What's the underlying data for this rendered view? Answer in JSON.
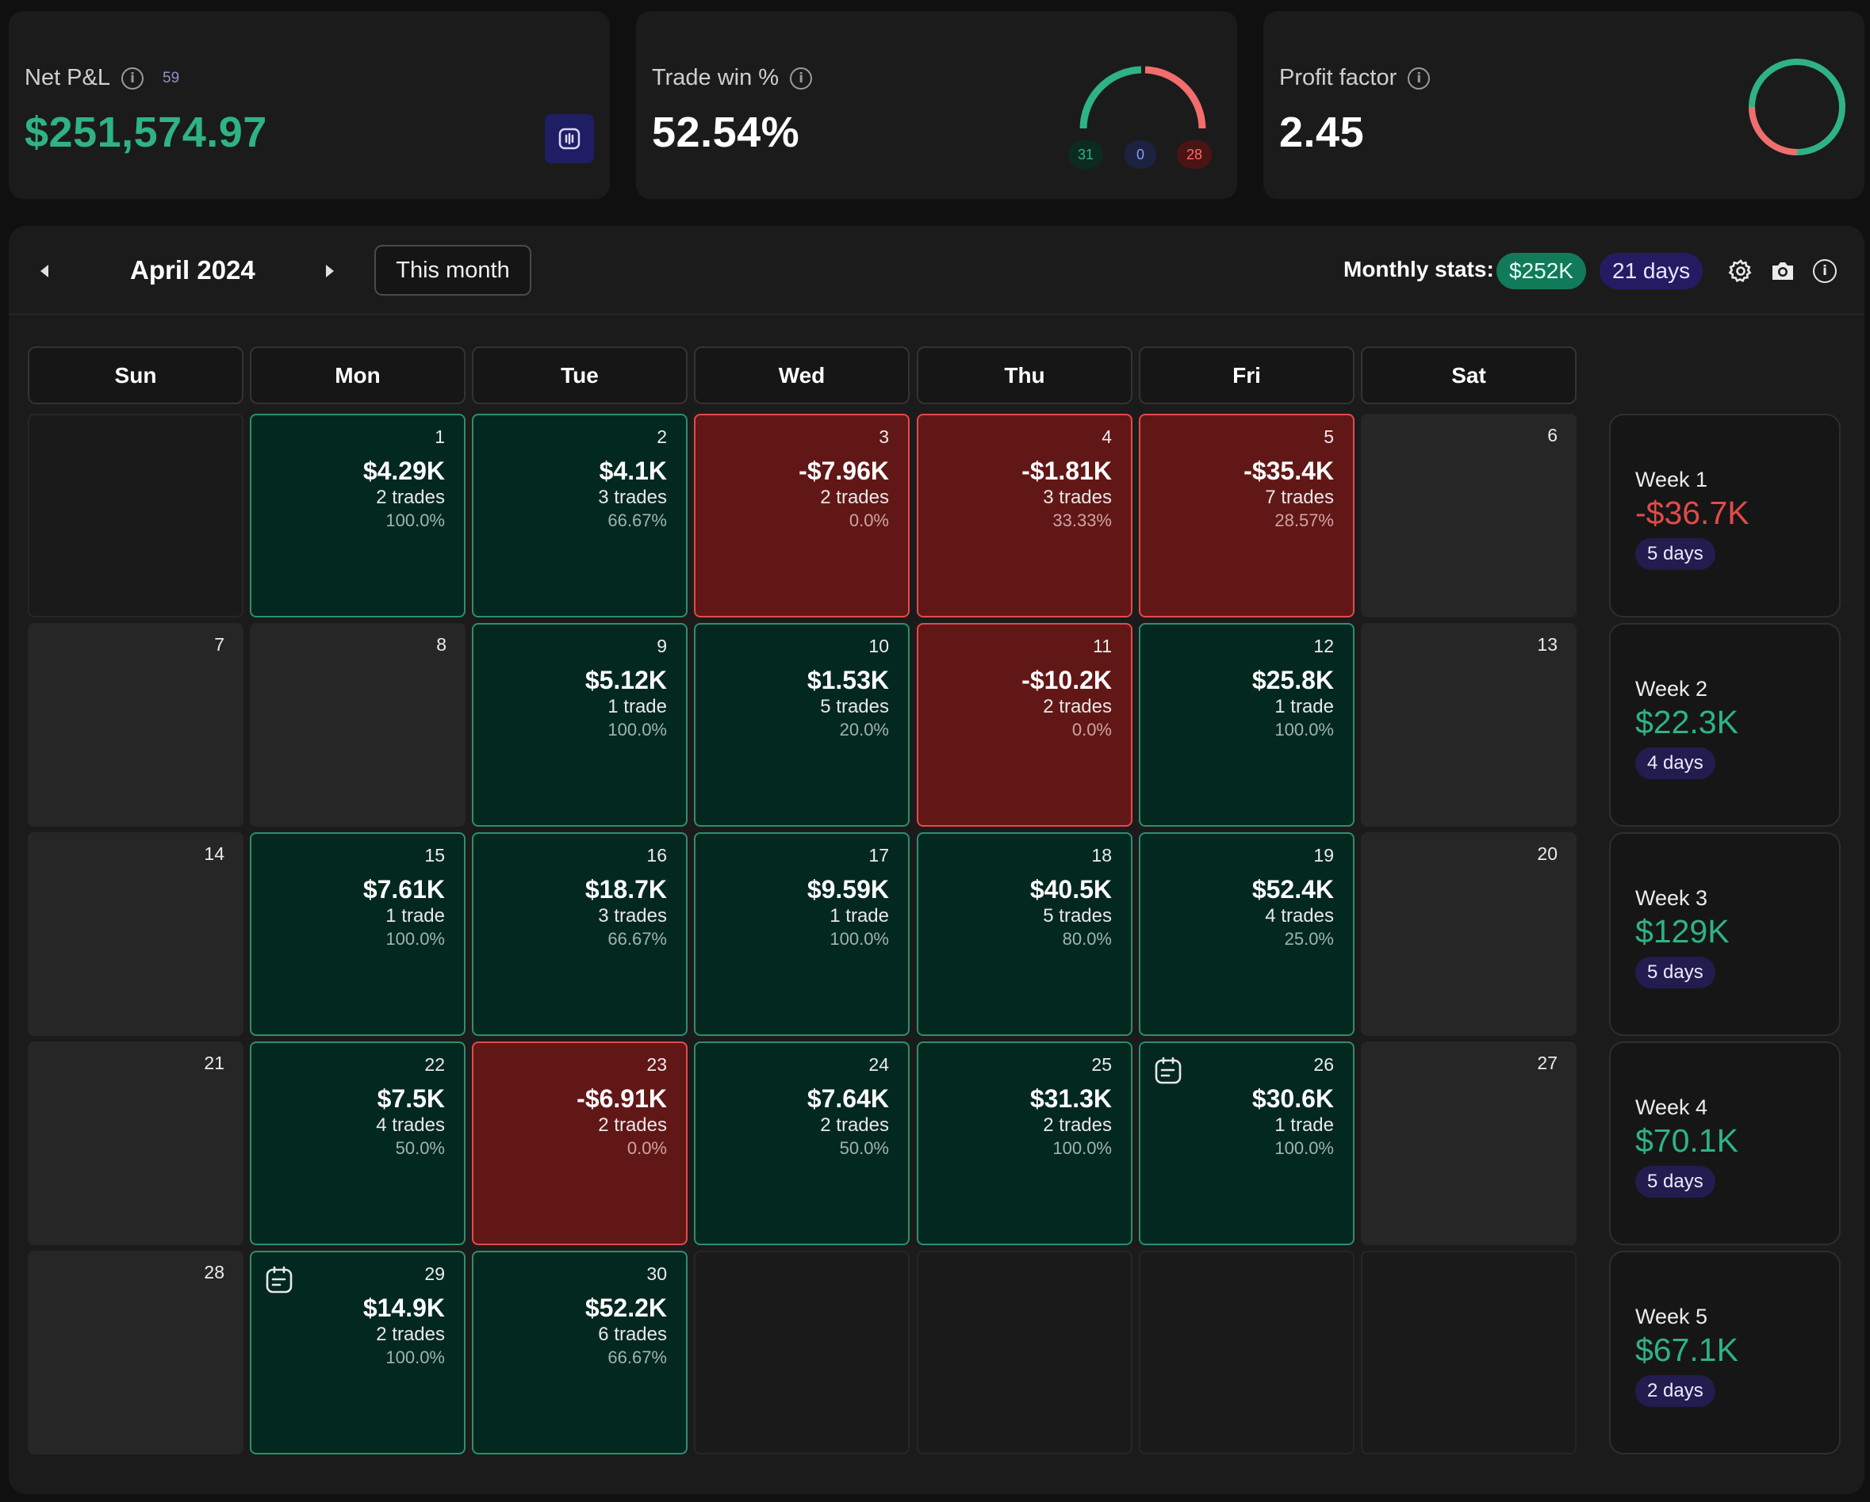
{
  "cards": {
    "net_pnl": {
      "label": "Net P&L",
      "count": "59",
      "value": "$251,574.97"
    },
    "trade_win": {
      "label": "Trade win %",
      "value": "52.54%",
      "wins": "31",
      "breakeven": "0",
      "losses": "28"
    },
    "profit_factor": {
      "label": "Profit factor",
      "value": "2.45"
    }
  },
  "calendar": {
    "month_title": "April 2024",
    "this_month_label": "This month",
    "monthly_stats_label": "Monthly stats:",
    "monthly_profit": "$252K",
    "monthly_days": "21 days",
    "weekdays": [
      "Sun",
      "Mon",
      "Tue",
      "Wed",
      "Thu",
      "Fri",
      "Sat"
    ],
    "weeks": [
      [
        {
          "kind": "blank"
        },
        {
          "kind": "profit",
          "day": "1",
          "pnl": "$4.29K",
          "trades": "2 trades",
          "rate": "100.0%"
        },
        {
          "kind": "profit",
          "day": "2",
          "pnl": "$4.1K",
          "trades": "3 trades",
          "rate": "66.67%"
        },
        {
          "kind": "loss",
          "day": "3",
          "pnl": "-$7.96K",
          "trades": "2 trades",
          "rate": "0.0%"
        },
        {
          "kind": "loss",
          "day": "4",
          "pnl": "-$1.81K",
          "trades": "3 trades",
          "rate": "33.33%"
        },
        {
          "kind": "loss",
          "day": "5",
          "pnl": "-$35.4K",
          "trades": "7 trades",
          "rate": "28.57%"
        },
        {
          "kind": "empty",
          "day": "6"
        }
      ],
      [
        {
          "kind": "empty",
          "day": "7"
        },
        {
          "kind": "empty",
          "day": "8"
        },
        {
          "kind": "profit",
          "day": "9",
          "pnl": "$5.12K",
          "trades": "1 trade",
          "rate": "100.0%"
        },
        {
          "kind": "profit",
          "day": "10",
          "pnl": "$1.53K",
          "trades": "5 trades",
          "rate": "20.0%"
        },
        {
          "kind": "loss",
          "day": "11",
          "pnl": "-$10.2K",
          "trades": "2 trades",
          "rate": "0.0%"
        },
        {
          "kind": "profit",
          "day": "12",
          "pnl": "$25.8K",
          "trades": "1 trade",
          "rate": "100.0%"
        },
        {
          "kind": "empty",
          "day": "13"
        }
      ],
      [
        {
          "kind": "empty",
          "day": "14"
        },
        {
          "kind": "profit",
          "day": "15",
          "pnl": "$7.61K",
          "trades": "1 trade",
          "rate": "100.0%"
        },
        {
          "kind": "profit",
          "day": "16",
          "pnl": "$18.7K",
          "trades": "3 trades",
          "rate": "66.67%"
        },
        {
          "kind": "profit",
          "day": "17",
          "pnl": "$9.59K",
          "trades": "1 trade",
          "rate": "100.0%"
        },
        {
          "kind": "profit",
          "day": "18",
          "pnl": "$40.5K",
          "trades": "5 trades",
          "rate": "80.0%"
        },
        {
          "kind": "profit",
          "day": "19",
          "pnl": "$52.4K",
          "trades": "4 trades",
          "rate": "25.0%"
        },
        {
          "kind": "empty",
          "day": "20"
        }
      ],
      [
        {
          "kind": "empty",
          "day": "21"
        },
        {
          "kind": "profit",
          "day": "22",
          "pnl": "$7.5K",
          "trades": "4 trades",
          "rate": "50.0%"
        },
        {
          "kind": "loss",
          "day": "23",
          "pnl": "-$6.91K",
          "trades": "2 trades",
          "rate": "0.0%"
        },
        {
          "kind": "profit",
          "day": "24",
          "pnl": "$7.64K",
          "trades": "2 trades",
          "rate": "50.0%"
        },
        {
          "kind": "profit",
          "day": "25",
          "pnl": "$31.3K",
          "trades": "2 trades",
          "rate": "100.0%"
        },
        {
          "kind": "profit",
          "day": "26",
          "pnl": "$30.6K",
          "trades": "1 trade",
          "rate": "100.0%",
          "note": true
        },
        {
          "kind": "empty",
          "day": "27"
        }
      ],
      [
        {
          "kind": "empty",
          "day": "28"
        },
        {
          "kind": "profit",
          "day": "29",
          "pnl": "$14.9K",
          "trades": "2 trades",
          "rate": "100.0%",
          "note": true
        },
        {
          "kind": "profit",
          "day": "30",
          "pnl": "$52.2K",
          "trades": "6 trades",
          "rate": "66.67%"
        },
        {
          "kind": "blank"
        },
        {
          "kind": "blank"
        },
        {
          "kind": "blank"
        },
        {
          "kind": "blank"
        }
      ]
    ],
    "week_summaries": [
      {
        "label": "Week 1",
        "value": "-$36.7K",
        "days": "5 days",
        "positive": false
      },
      {
        "label": "Week 2",
        "value": "$22.3K",
        "days": "4 days",
        "positive": true
      },
      {
        "label": "Week 3",
        "value": "$129K",
        "days": "5 days",
        "positive": true
      },
      {
        "label": "Week 4",
        "value": "$70.1K",
        "days": "5 days",
        "positive": true
      },
      {
        "label": "Week 5",
        "value": "$67.1K",
        "days": "2 days",
        "positive": true
      }
    ]
  },
  "icons": {
    "info": "info-icon",
    "report": "report-icon",
    "prev": "chevron-left-icon",
    "next": "chevron-right-icon",
    "settings": "gear-icon",
    "screenshot": "camera-icon",
    "note": "note-icon"
  },
  "colors": {
    "profit": "#2fb384",
    "loss": "#e24a4a",
    "accent": "#231c63"
  }
}
